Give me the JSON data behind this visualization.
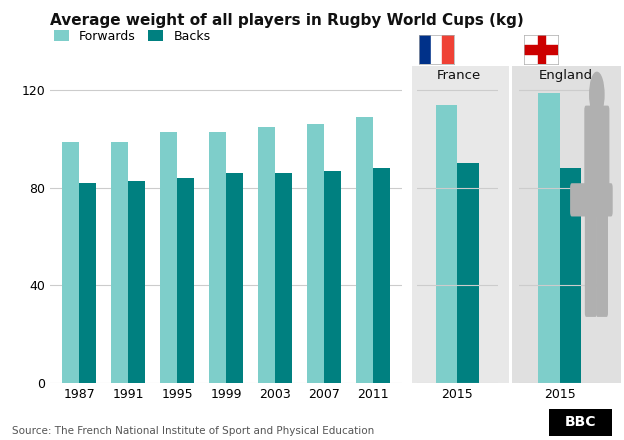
{
  "title": "Average weight of all players in Rugby World Cups (kg)",
  "source": "Source: The French National Institute of Sport and Physical Education",
  "years": [
    1987,
    1991,
    1995,
    1999,
    2003,
    2007,
    2011
  ],
  "forwards": [
    99,
    99,
    103,
    103,
    105,
    106,
    109
  ],
  "backs": [
    82,
    83,
    84,
    86,
    86,
    87,
    88
  ],
  "france_forwards": 114,
  "france_backs": 90,
  "england_forwards": 119,
  "england_backs": 88,
  "color_forwards": "#7ececa",
  "color_backs": "#008080",
  "ylim": [
    0,
    130
  ],
  "yticks": [
    0,
    40,
    80,
    120
  ],
  "bar_width": 0.35,
  "bg_color": "#ffffff",
  "france_bg": "#e8e8e8",
  "england_bg": "#e0e0e0",
  "silhouette_color": "#b0b0b0",
  "france_flag_blue": "#003189",
  "france_flag_white": "#ffffff",
  "france_flag_red": "#ef4135",
  "england_flag_white": "#ffffff",
  "england_flag_red": "#cc0000",
  "bbc_bg": "#000000",
  "bbc_text": "#ffffff",
  "grid_color": "#cccccc",
  "text_color": "#111111",
  "source_color": "#555555"
}
